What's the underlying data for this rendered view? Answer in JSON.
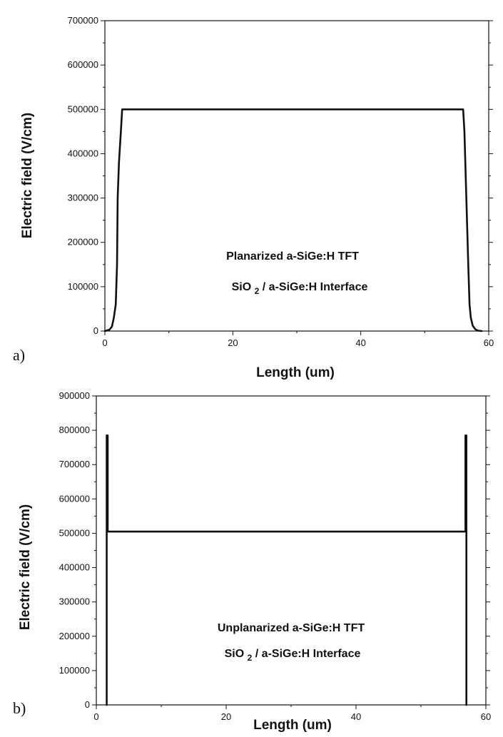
{
  "chart_data": [
    {
      "type": "line",
      "panel_label": "a)",
      "xlabel": "Length (um)",
      "ylabel": "Electric field (V/cm)",
      "xlim": [
        0,
        60
      ],
      "ylim": [
        0,
        700000
      ],
      "xticks": [
        "0",
        "20",
        "40",
        "60"
      ],
      "yticks": [
        "0",
        "100000",
        "200000",
        "300000",
        "400000",
        "500000",
        "600000",
        "700000"
      ],
      "annotations": [
        "Planarized a-SiGe:H TFT",
        "SiO2 / a-SiGe:H Interface"
      ],
      "series": [
        {
          "x": [
            0,
            0.7,
            1.1,
            1.4,
            1.7,
            1.9,
            2.0,
            2.2,
            2.5,
            2.7,
            3.0,
            56.0,
            56.2,
            56.5,
            56.8,
            57.0,
            57.2,
            57.5,
            57.9,
            58.3,
            58.9
          ],
          "y": [
            0,
            3000,
            10000,
            30000,
            60000,
            150000,
            300000,
            380000,
            450000,
            500000,
            500000,
            500000,
            450000,
            300000,
            150000,
            60000,
            30000,
            12000,
            4000,
            1000,
            0
          ]
        }
      ]
    },
    {
      "type": "line",
      "panel_label": "b)",
      "xlabel": "Length (um)",
      "ylabel": "Electric field (V/cm)",
      "xlim": [
        0,
        60
      ],
      "ylim": [
        0,
        900000
      ],
      "xticks": [
        "0",
        "20",
        "40",
        "60"
      ],
      "yticks": [
        "0",
        "100000",
        "200000",
        "300000",
        "400000",
        "500000",
        "600000",
        "700000",
        "800000",
        "900000"
      ],
      "annotations": [
        "Unplanarized a-SiGe:H TFT",
        "SiO2 / a-SiGe:H Interface"
      ],
      "series": [
        {
          "x": [
            1.6,
            1.6,
            1.75,
            1.75,
            2.0,
            56.6,
            56.85,
            56.85,
            57.0,
            57.0
          ],
          "y": [
            0,
            785000,
            785000,
            505000,
            505000,
            505000,
            505000,
            785000,
            785000,
            0
          ]
        }
      ]
    }
  ]
}
